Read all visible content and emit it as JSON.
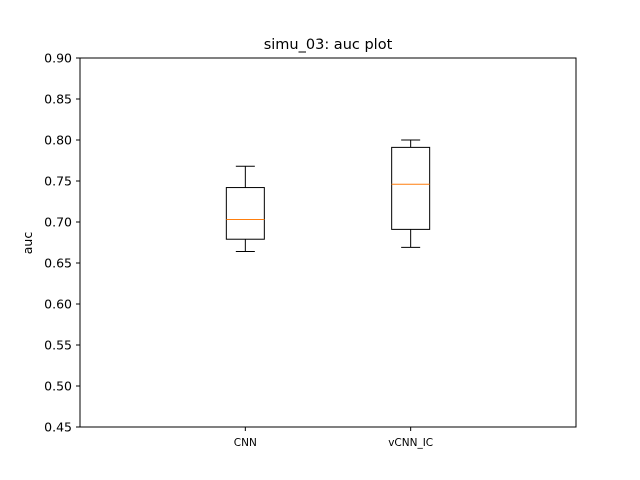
{
  "chart_data": {
    "type": "box",
    "title": "simu_03:  auc plot",
    "xlabel": "",
    "ylabel": "auc",
    "ylim": [
      0.45,
      0.9
    ],
    "yticks": [
      0.45,
      0.5,
      0.55,
      0.6,
      0.65,
      0.7,
      0.75,
      0.8,
      0.85,
      0.9
    ],
    "ytick_labels": [
      "0.45",
      "0.50",
      "0.55",
      "0.60",
      "0.65",
      "0.70",
      "0.75",
      "0.80",
      "0.85",
      "0.90"
    ],
    "categories": [
      "CNN",
      "vCNN_IC"
    ],
    "boxes": [
      {
        "label": "CNN",
        "whisker_low": 0.664,
        "q1": 0.679,
        "median": 0.703,
        "q3": 0.742,
        "whisker_high": 0.768
      },
      {
        "label": "vCNN_IC",
        "whisker_low": 0.669,
        "q1": 0.691,
        "median": 0.746,
        "q3": 0.791,
        "whisker_high": 0.8
      }
    ],
    "grid": false,
    "colors": {
      "box": "#000000",
      "median": "#ff7f0e"
    }
  }
}
